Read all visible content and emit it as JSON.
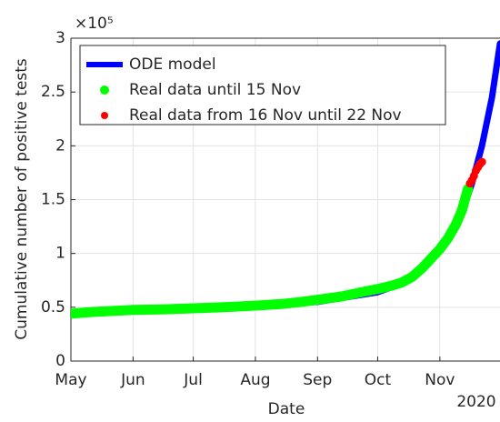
{
  "chart_data": {
    "type": "line",
    "x_label": "Date",
    "y_label": "Cumulative number of positive tests",
    "y_exponent_label": "×10⁵",
    "year_label": "2020",
    "xlim": [
      0,
      214
    ],
    "ylim": [
      0,
      3
    ],
    "xticks": [
      {
        "value": 0,
        "label": "May"
      },
      {
        "value": 31,
        "label": "Jun"
      },
      {
        "value": 61,
        "label": "Jul"
      },
      {
        "value": 92,
        "label": "Aug"
      },
      {
        "value": 123,
        "label": "Sep"
      },
      {
        "value": 153,
        "label": "Oct"
      },
      {
        "value": 184,
        "label": "Nov"
      }
    ],
    "yticks": [
      0,
      0.5,
      1,
      1.5,
      2,
      2.5,
      3
    ],
    "grid": true,
    "legend": "top-left",
    "series": [
      {
        "name": "ODE model",
        "color": "#0000ff",
        "style": "line",
        "x": [
          0,
          31,
          61,
          92,
          123,
          153,
          165,
          175,
          184,
          190,
          195,
          200,
          205,
          210,
          214
        ],
        "values": [
          0.44,
          0.47,
          0.49,
          0.51,
          0.55,
          0.64,
          0.72,
          0.85,
          1.02,
          1.18,
          1.38,
          1.65,
          2.0,
          2.45,
          2.95
        ]
      },
      {
        "name": "Real data until 15 Nov",
        "color": "#00ff00",
        "style": "dots",
        "x": [
          0,
          10,
          20,
          31,
          45,
          61,
          75,
          92,
          105,
          115,
          123,
          135,
          145,
          153,
          160,
          165,
          170,
          175,
          180,
          184,
          188,
          192,
          195,
          198
        ],
        "values": [
          0.44,
          0.455,
          0.465,
          0.475,
          0.48,
          0.49,
          0.5,
          0.515,
          0.53,
          0.55,
          0.57,
          0.6,
          0.64,
          0.67,
          0.7,
          0.73,
          0.78,
          0.86,
          0.96,
          1.04,
          1.14,
          1.27,
          1.4,
          1.6
        ]
      },
      {
        "name": "Real data from 16 Nov until 22 Nov",
        "color": "#ff0000",
        "style": "points",
        "x": [
          199,
          200,
          201,
          202,
          203,
          204,
          205
        ],
        "values": [
          1.65,
          1.68,
          1.72,
          1.77,
          1.8,
          1.83,
          1.85
        ]
      }
    ]
  }
}
